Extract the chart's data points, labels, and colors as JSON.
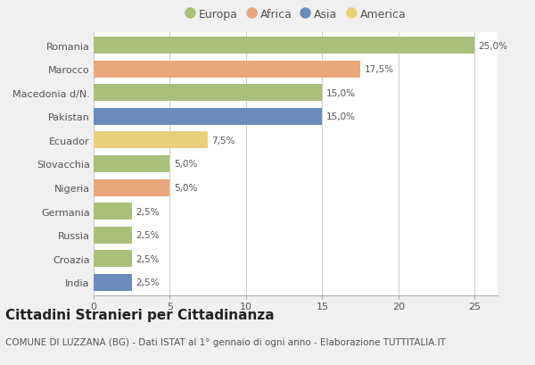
{
  "countries": [
    "Romania",
    "Marocco",
    "Macedonia d/N.",
    "Pakistan",
    "Ecuador",
    "Slovacchia",
    "Nigeria",
    "Germania",
    "Russia",
    "Croazia",
    "India"
  ],
  "values": [
    25.0,
    17.5,
    15.0,
    15.0,
    7.5,
    5.0,
    5.0,
    2.5,
    2.5,
    2.5,
    2.5
  ],
  "labels": [
    "25,0%",
    "17,5%",
    "15,0%",
    "15,0%",
    "7,5%",
    "5,0%",
    "5,0%",
    "2,5%",
    "2,5%",
    "2,5%",
    "2,5%"
  ],
  "continents": [
    "Europa",
    "Africa",
    "Europa",
    "Asia",
    "America",
    "Europa",
    "Africa",
    "Europa",
    "Europa",
    "Europa",
    "Asia"
  ],
  "colors": {
    "Europa": "#a8c07a",
    "Africa": "#e8a87c",
    "Asia": "#6b8cba",
    "America": "#e8d07a"
  },
  "legend_order": [
    "Europa",
    "Africa",
    "Asia",
    "America"
  ],
  "title": "Cittadini Stranieri per Cittadinanza",
  "subtitle": "COMUNE DI LUZZANA (BG) - Dati ISTAT al 1° gennaio di ogni anno - Elaborazione TUTTITALIA.IT",
  "xlim": [
    0,
    26.5
  ],
  "xticks": [
    0,
    5,
    10,
    15,
    20,
    25
  ],
  "bg_color": "#f0f0f0",
  "plot_bg_color": "#ffffff",
  "grid_color": "#cccccc",
  "title_fontsize": 11,
  "subtitle_fontsize": 7.5,
  "label_fontsize": 7.5,
  "tick_fontsize": 8,
  "legend_fontsize": 9
}
